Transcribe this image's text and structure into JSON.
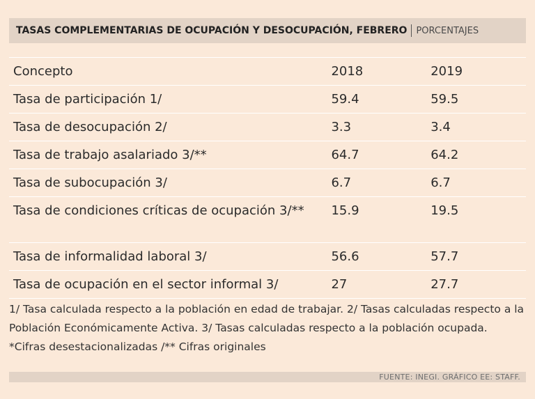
{
  "header": {
    "title": "TASAS COMPLEMENTARIAS DE OCUPACIÓN Y DESOCUPACIÓN, FEBRERO",
    "subtitle": "PORCENTAJES"
  },
  "table": {
    "columns": [
      "Concepto",
      "2018",
      "2019"
    ],
    "rows": [
      {
        "concept": "Tasa de participación 1/",
        "y2018": "59.4",
        "y2019": "59.5"
      },
      {
        "concept": "Tasa de desocupación 2/",
        "y2018": "3.3",
        "y2019": "3.4"
      },
      {
        "concept": "Tasa de trabajo asalariado 3/**",
        "y2018": "64.7",
        "y2019": "64.2"
      },
      {
        "concept": "Tasa de subocupación 3/",
        "y2018": "6.7",
        "y2019": "6.7"
      },
      {
        "concept": "Tasa de condiciones críticas de ocupación 3/**",
        "y2018": "15.9",
        "y2019": "19.5"
      },
      {
        "concept": "Tasa de informalidad laboral 3/",
        "y2018": "56.6",
        "y2019": "57.7"
      },
      {
        "concept": "Tasa de ocupación en el sector informal 3/",
        "y2018": "27",
        "y2019": "27.7"
      }
    ]
  },
  "notes": "1/ Tasa calculada respecto a la población en edad de trabajar. 2/ Tasas calculadas respecto a la Población Económicamente Activa. 3/ Tasas calculadas respecto a la población ocupada. *Cifras desestacionalizadas /** Cifras originales",
  "source": "FUENTE: INEGI. GRÁFICO EE: STAFF."
}
